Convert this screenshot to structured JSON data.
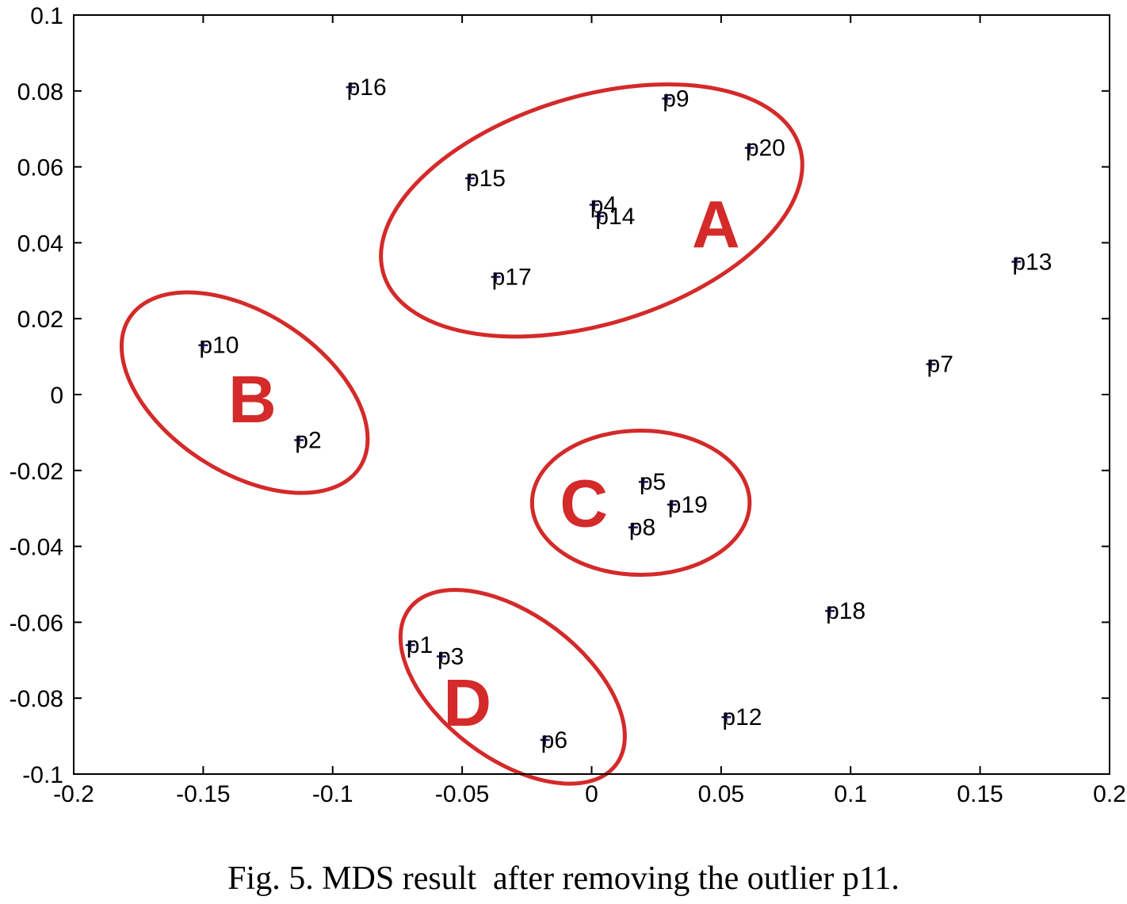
{
  "caption": "Fig. 5. MDS result  after removing the outlier p11.",
  "colors": {
    "marker": "#1a1a66",
    "cluster": "#d42a2a",
    "axis": "#000000"
  },
  "chart_data": {
    "type": "scatter",
    "xlim": [
      -0.2,
      0.2
    ],
    "ylim": [
      -0.1,
      0.1
    ],
    "x_ticks": [
      -0.2,
      -0.15,
      -0.1,
      -0.05,
      0,
      0.05,
      0.1,
      0.15,
      0.2
    ],
    "x_tick_labels": [
      "-0.2",
      "-0.15",
      "-0.1",
      "-0.05",
      "0",
      "0.05",
      "0.1",
      "0.15",
      "0.2"
    ],
    "y_ticks": [
      0.1,
      0.08,
      0.06,
      0.04,
      0.02,
      0,
      -0.02,
      -0.04,
      -0.06,
      -0.08,
      -0.1
    ],
    "y_tick_labels": [
      "0.1",
      "0.08",
      "0.06",
      "0.04",
      "0.02",
      "0",
      "-0.02",
      "-0.04",
      "-0.06",
      "-0.08",
      "-0.1"
    ],
    "grid": false,
    "marker": "+",
    "points": [
      {
        "label": "p16",
        "x": -0.093,
        "y": 0.081
      },
      {
        "label": "p9",
        "x": 0.029,
        "y": 0.078
      },
      {
        "label": "p20",
        "x": 0.061,
        "y": 0.065
      },
      {
        "label": "p15",
        "x": -0.047,
        "y": 0.057
      },
      {
        "label": "p4",
        "x": 0.001,
        "y": 0.05
      },
      {
        "label": "p14",
        "x": 0.003,
        "y": 0.047
      },
      {
        "label": "p17",
        "x": -0.037,
        "y": 0.031
      },
      {
        "label": "p13",
        "x": 0.164,
        "y": 0.035
      },
      {
        "label": "p10",
        "x": -0.15,
        "y": 0.013
      },
      {
        "label": "p7",
        "x": 0.131,
        "y": 0.008
      },
      {
        "label": "p2",
        "x": -0.113,
        "y": -0.012
      },
      {
        "label": "p5",
        "x": 0.02,
        "y": -0.023
      },
      {
        "label": "p19",
        "x": 0.031,
        "y": -0.029
      },
      {
        "label": "p8",
        "x": 0.016,
        "y": -0.035
      },
      {
        "label": "p18",
        "x": 0.092,
        "y": -0.057
      },
      {
        "label": "p1",
        "x": -0.07,
        "y": -0.066
      },
      {
        "label": "p3",
        "x": -0.058,
        "y": -0.069
      },
      {
        "label": "p12",
        "x": 0.052,
        "y": -0.085
      },
      {
        "label": "p6",
        "x": -0.018,
        "y": -0.091
      }
    ],
    "clusters": [
      {
        "name": "A",
        "members": [
          "p9",
          "p20",
          "p15",
          "p4",
          "p14",
          "p17"
        ],
        "center": [
          0.0,
          0.0485
        ],
        "radii": [
          0.084,
          0.03
        ],
        "rotation": -17,
        "label_pos": [
          0.048,
          0.045
        ]
      },
      {
        "name": "B",
        "members": [
          "p10",
          "p2"
        ],
        "center": [
          -0.134,
          0.0005
        ],
        "radii": [
          0.053,
          0.021
        ],
        "rotation": 33,
        "label_pos": [
          -0.131,
          -0.001
        ]
      },
      {
        "name": "C",
        "members": [
          "p5",
          "p19",
          "p8"
        ],
        "center": [
          0.019,
          -0.0285
        ],
        "radii": [
          0.042,
          0.019
        ],
        "rotation": 0,
        "label_pos": [
          -0.003,
          -0.0285
        ]
      },
      {
        "name": "D",
        "members": [
          "p1",
          "p3",
          "p6"
        ],
        "center": [
          -0.0305,
          -0.077
        ],
        "radii": [
          0.05,
          0.019
        ],
        "rotation": 37,
        "label_pos": [
          -0.048,
          -0.081
        ]
      }
    ]
  }
}
